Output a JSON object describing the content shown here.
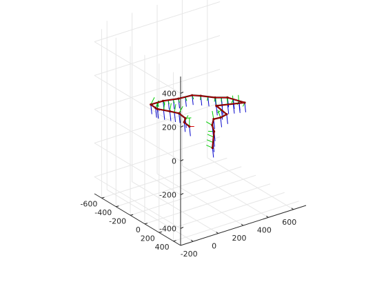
{
  "chart_data": {
    "type": "line",
    "projection": "3d",
    "title": "",
    "xlabel": "",
    "ylabel": "",
    "zlabel": "",
    "grid": true,
    "legend": "none",
    "xlim": [
      -300,
      700
    ],
    "ylim": [
      -700,
      500
    ],
    "zlim": [
      -500,
      500
    ],
    "x_ticks": [
      "-200",
      "0",
      "200",
      "400",
      "600"
    ],
    "y_ticks": [
      "400",
      "200",
      "0",
      "-200",
      "-400",
      "-600"
    ],
    "z_ticks": [
      "400",
      "200",
      "0",
      "-200",
      "-400"
    ],
    "x_tick_values": [
      -200,
      0,
      200,
      400,
      600
    ],
    "y_tick_values": [
      400,
      200,
      0,
      -200,
      -400,
      -600
    ],
    "z_tick_values": [
      400,
      200,
      0,
      -200,
      -400
    ],
    "series": [
      {
        "color": "#d40000",
        "points": [
          {
            "x": -20,
            "y": 455,
            "z": 0
          },
          {
            "x": 130,
            "y": 215,
            "z": 0
          },
          {
            "x": 175,
            "y": 110,
            "z": 0
          },
          {
            "x": 235,
            "y": 25,
            "z": 0
          },
          {
            "x": 285,
            "y": 35,
            "z": 0
          },
          {
            "x": 345,
            "y": 15,
            "z": 0
          },
          {
            "x": 365,
            "y": -165,
            "z": 0
          },
          {
            "x": 540,
            "y": -75,
            "z": 0
          },
          {
            "x": 495,
            "y": -235,
            "z": 0
          },
          {
            "x": 430,
            "y": -295,
            "z": 0
          },
          {
            "x": 370,
            "y": -390,
            "z": 0
          },
          {
            "x": 330,
            "y": -440,
            "z": 0
          },
          {
            "x": 230,
            "y": -455,
            "z": 0
          },
          {
            "x": 130,
            "y": -495,
            "z": 0
          },
          {
            "x": 35,
            "y": -500,
            "z": 0
          },
          {
            "x": 30,
            "y": -425,
            "z": 0
          },
          {
            "x": 30,
            "y": -400,
            "z": 0
          },
          {
            "x": 75,
            "y": -305,
            "z": 0
          },
          {
            "x": 105,
            "y": -230,
            "z": 0
          },
          {
            "x": 95,
            "y": -125,
            "z": 0
          },
          {
            "x": 55,
            "y": -70,
            "z": 0
          },
          {
            "x": 45,
            "y": 20,
            "z": 0
          }
        ]
      }
    ],
    "frame_axes_colors": {
      "x": "#d40000",
      "y": "#00cc00",
      "z": "#0000cc"
    }
  }
}
